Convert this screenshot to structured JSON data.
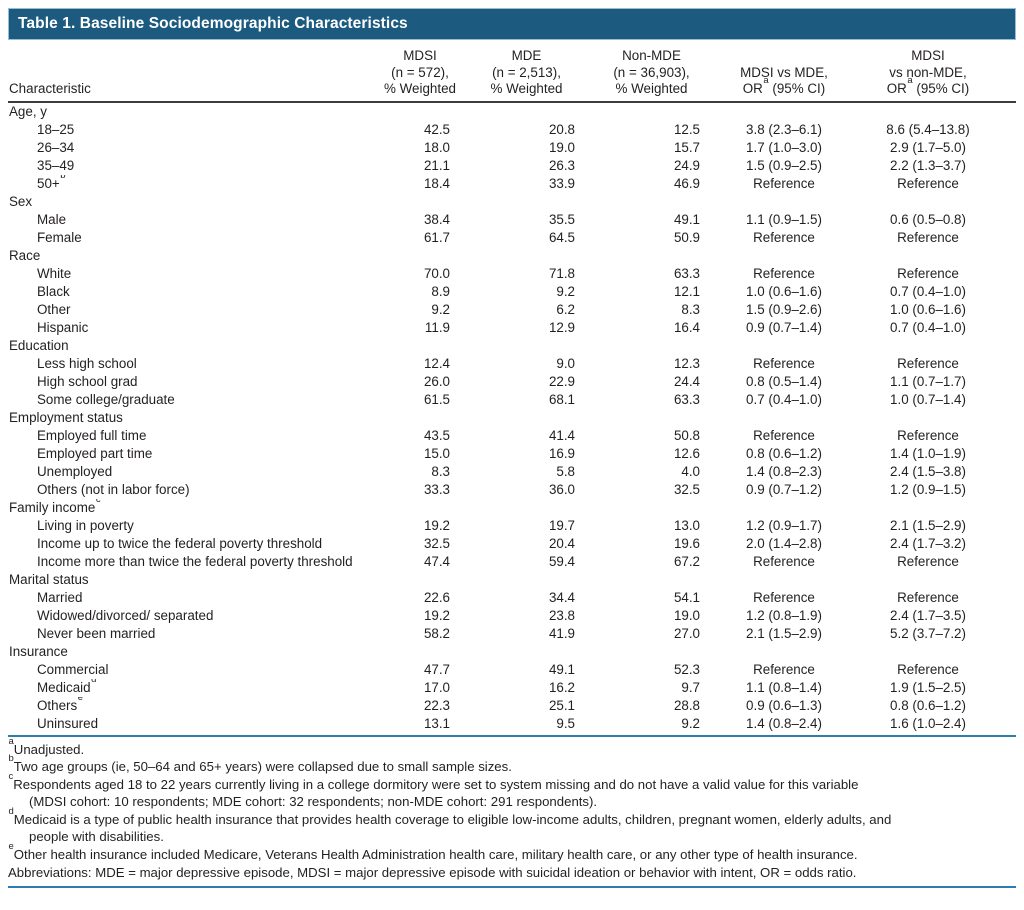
{
  "colors": {
    "header_bar": "#1c5a80",
    "rule_blue": "#2d7dae",
    "rule_dark": "#3d3d3d",
    "text": "#231f20"
  },
  "table": {
    "title": "Table 1. Baseline Sociodemographic Characteristics",
    "columns": [
      {
        "id": "characteristic",
        "lines": [
          "Characteristic"
        ]
      },
      {
        "id": "mdsi_pct",
        "lines": [
          "MDSI",
          "(n = 572),",
          "% Weighted"
        ]
      },
      {
        "id": "mde_pct",
        "lines": [
          "MDE",
          "(n = 2,513),",
          "% Weighted"
        ]
      },
      {
        "id": "non_mde_pct",
        "lines": [
          "Non-MDE",
          "(n = 36,903),",
          "% Weighted"
        ]
      },
      {
        "id": "or_mdsi_vs_mde",
        "lines": [
          "MDSI vs MDE,",
          {
            "pre": "OR",
            "sup": "a",
            "post": " (95% CI)"
          }
        ]
      },
      {
        "id": "or_mdsi_vs_non_mde",
        "lines": [
          "MDSI",
          "vs non-MDE,",
          {
            "pre": "OR",
            "sup": "a",
            "post": " (95% CI)"
          }
        ]
      }
    ],
    "rows": [
      {
        "label": "Age, y"
      },
      {
        "label": "18–25",
        "values": [
          "42.5",
          "20.8",
          "12.5",
          "3.8 (2.3–6.1)",
          "8.6 (5.4–13.8)"
        ]
      },
      {
        "label": "26–34",
        "values": [
          "18.0",
          "19.0",
          "15.7",
          "1.7 (1.0–3.0)",
          "2.9 (1.7–5.0)"
        ]
      },
      {
        "label": "35–49",
        "values": [
          "21.1",
          "26.3",
          "24.9",
          "1.5 (0.9–2.5)",
          "2.2 (1.3–3.7)"
        ]
      },
      {
        "label": "50+",
        "sup": "b",
        "values": [
          "18.4",
          "33.9",
          "46.9",
          "Reference",
          "Reference"
        ]
      },
      {
        "label": "Sex"
      },
      {
        "label": "Male",
        "values": [
          "38.4",
          "35.5",
          "49.1",
          "1.1 (0.9–1.5)",
          "0.6 (0.5–0.8)"
        ]
      },
      {
        "label": "Female",
        "values": [
          "61.7",
          "64.5",
          "50.9",
          "Reference",
          "Reference"
        ]
      },
      {
        "label": "Race"
      },
      {
        "label": "White",
        "values": [
          "70.0",
          "71.8",
          "63.3",
          "Reference",
          "Reference"
        ]
      },
      {
        "label": "Black",
        "values": [
          "8.9",
          "9.2",
          "12.1",
          "1.0 (0.6–1.6)",
          "0.7 (0.4–1.0)"
        ]
      },
      {
        "label": "Other",
        "values": [
          "9.2",
          "6.2",
          "8.3",
          "1.5 (0.9–2.6)",
          "1.0 (0.6–1.6)"
        ]
      },
      {
        "label": "Hispanic",
        "values": [
          "11.9",
          "12.9",
          "16.4",
          "0.9 (0.7–1.4)",
          "0.7 (0.4–1.0)"
        ]
      },
      {
        "label": "Education"
      },
      {
        "label": "Less high school",
        "values": [
          "12.4",
          "9.0",
          "12.3",
          "Reference",
          "Reference"
        ]
      },
      {
        "label": "High school grad",
        "values": [
          "26.0",
          "22.9",
          "24.4",
          "0.8 (0.5–1.4)",
          "1.1 (0.7–1.7)"
        ]
      },
      {
        "label": "Some college/graduate",
        "values": [
          "61.5",
          "68.1",
          "63.3",
          "0.7 (0.4–1.0)",
          "1.0 (0.7–1.4)"
        ]
      },
      {
        "label": "Employment status"
      },
      {
        "label": "Employed full time",
        "values": [
          "43.5",
          "41.4",
          "50.8",
          "Reference",
          "Reference"
        ]
      },
      {
        "label": "Employed part time",
        "values": [
          "15.0",
          "16.9",
          "12.6",
          "0.8 (0.6–1.2)",
          "1.4 (1.0–1.9)"
        ]
      },
      {
        "label": "Unemployed",
        "values": [
          "8.3",
          "5.8",
          "4.0",
          "1.4 (0.8–2.3)",
          "2.4 (1.5–3.8)"
        ]
      },
      {
        "label": "Others (not in labor force)",
        "values": [
          "33.3",
          "36.0",
          "32.5",
          "0.9 (0.7–1.2)",
          "1.2 (0.9–1.5)"
        ]
      },
      {
        "label": "Family income",
        "sup": "c"
      },
      {
        "label": "Living in poverty",
        "values": [
          "19.2",
          "19.7",
          "13.0",
          "1.2 (0.9–1.7)",
          "2.1 (1.5–2.9)"
        ]
      },
      {
        "label": "Income up to twice the federal poverty threshold",
        "values": [
          "32.5",
          "20.4",
          "19.6",
          "2.0 (1.4–2.8)",
          "2.4 (1.7–3.2)"
        ]
      },
      {
        "label": "Income more than twice the federal poverty threshold",
        "values": [
          "47.4",
          "59.4",
          "67.2",
          "Reference",
          "Reference"
        ]
      },
      {
        "label": "Marital status"
      },
      {
        "label": "Married",
        "values": [
          "22.6",
          "34.4",
          "54.1",
          "Reference",
          "Reference"
        ]
      },
      {
        "label": "Widowed/divorced/ separated",
        "values": [
          "19.2",
          "23.8",
          "19.0",
          "1.2 (0.8–1.9)",
          "2.4 (1.7–3.5)"
        ]
      },
      {
        "label": "Never been married",
        "values": [
          "58.2",
          "41.9",
          "27.0",
          "2.1 (1.5–2.9)",
          "5.2 (3.7–7.2)"
        ]
      },
      {
        "label": "Insurance"
      },
      {
        "label": "Commercial",
        "values": [
          "47.7",
          "49.1",
          "52.3",
          "Reference",
          "Reference"
        ]
      },
      {
        "label": "Medicaid",
        "sup": "d",
        "values": [
          "17.0",
          "16.2",
          "9.7",
          "1.1 (0.8–1.4)",
          "1.9 (1.5–2.5)"
        ]
      },
      {
        "label": "Others",
        "sup": "e",
        "values": [
          "22.3",
          "25.1",
          "28.8",
          "0.9 (0.6–1.3)",
          "0.8 (0.6–1.2)"
        ]
      },
      {
        "label": "Uninsured",
        "values": [
          "13.1",
          "9.5",
          "9.2",
          "1.4 (0.8–2.4)",
          "1.6 (1.0–2.4)"
        ]
      }
    ],
    "footnotes": [
      {
        "sup": "a",
        "lines": [
          "Unadjusted."
        ]
      },
      {
        "sup": "b",
        "lines": [
          "Two age groups (ie, 50–64 and 65+ years) were collapsed due to small sample sizes."
        ]
      },
      {
        "sup": "c",
        "lines": [
          "Respondents aged 18 to 22 years currently living in a college dormitory were set to system missing and do not have a valid value for this variable",
          "(MDSI cohort: 10 respondents; MDE cohort: 32 respondents; non-MDE cohort: 291 respondents)."
        ]
      },
      {
        "sup": "d",
        "lines": [
          "Medicaid is a type of public health insurance that provides health coverage to eligible low-income adults, children, pregnant women, elderly adults, and",
          "people with disabilities."
        ]
      },
      {
        "sup": "e",
        "lines": [
          "Other health insurance included Medicare, Veterans Health Administration health care, military health care, or any other type of health insurance."
        ]
      },
      {
        "sup": "",
        "lines": [
          "Abbreviations: MDE = major depressive episode, MDSI = major depressive episode with suicidal ideation or behavior with intent, OR = odds ratio."
        ]
      }
    ]
  }
}
